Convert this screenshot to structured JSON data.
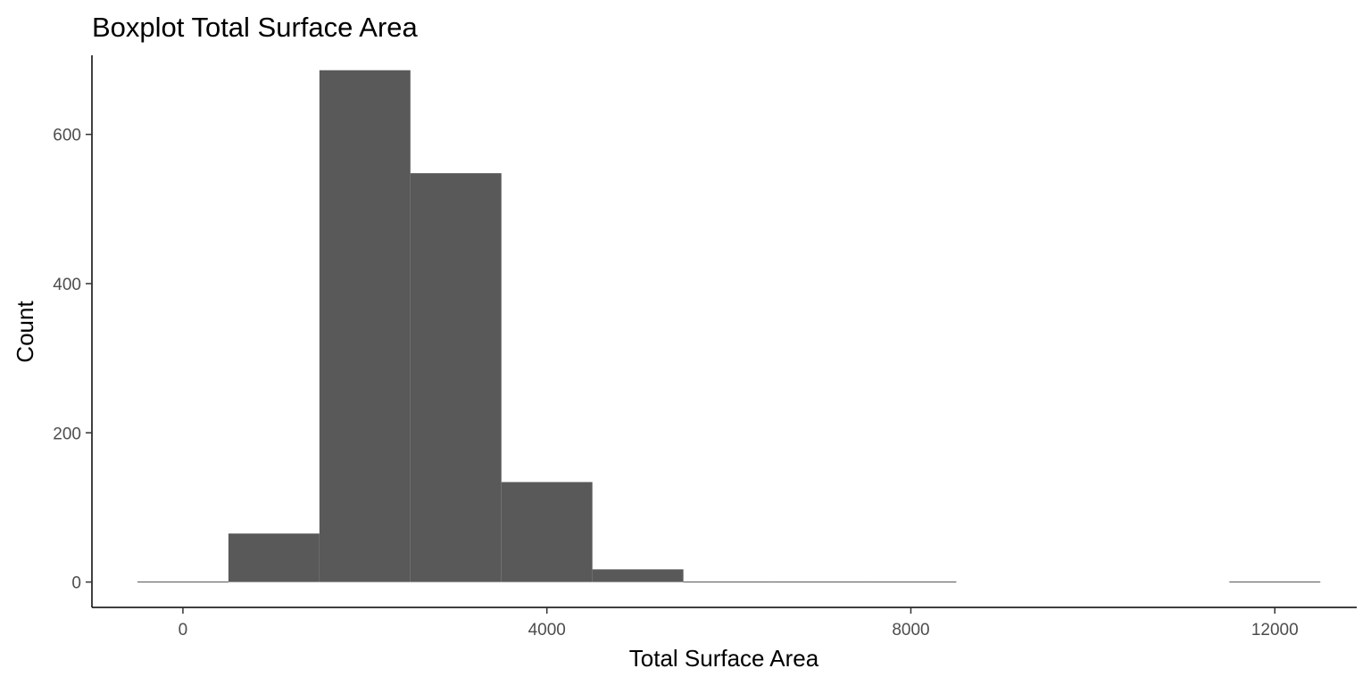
{
  "chart_data": {
    "type": "bar",
    "title": "Boxplot Total Surface Area",
    "xlabel": "Total Surface Area",
    "ylabel": "Count",
    "xlim": [
      -1000,
      12900
    ],
    "ylim": [
      -34,
      706
    ],
    "x_ticks": [
      0,
      4000,
      8000,
      12000
    ],
    "x_tick_labels": [
      "0",
      "4000",
      "8000",
      "12000"
    ],
    "y_ticks": [
      0,
      200,
      400,
      600
    ],
    "y_tick_labels": [
      "0",
      "200",
      "400",
      "600"
    ],
    "bin_width": 1000,
    "bins": [
      {
        "x": 0,
        "count": 0
      },
      {
        "x": 1000,
        "count": 65
      },
      {
        "x": 2000,
        "count": 686
      },
      {
        "x": 3000,
        "count": 548
      },
      {
        "x": 4000,
        "count": 134
      },
      {
        "x": 5000,
        "count": 17
      },
      {
        "x": 6000,
        "count": 0
      },
      {
        "x": 7000,
        "count": 0
      },
      {
        "x": 8000,
        "count": 0
      },
      {
        "x": 12000,
        "count": 0
      }
    ],
    "bar_color": "#595959",
    "grid": false,
    "legend": "none"
  }
}
